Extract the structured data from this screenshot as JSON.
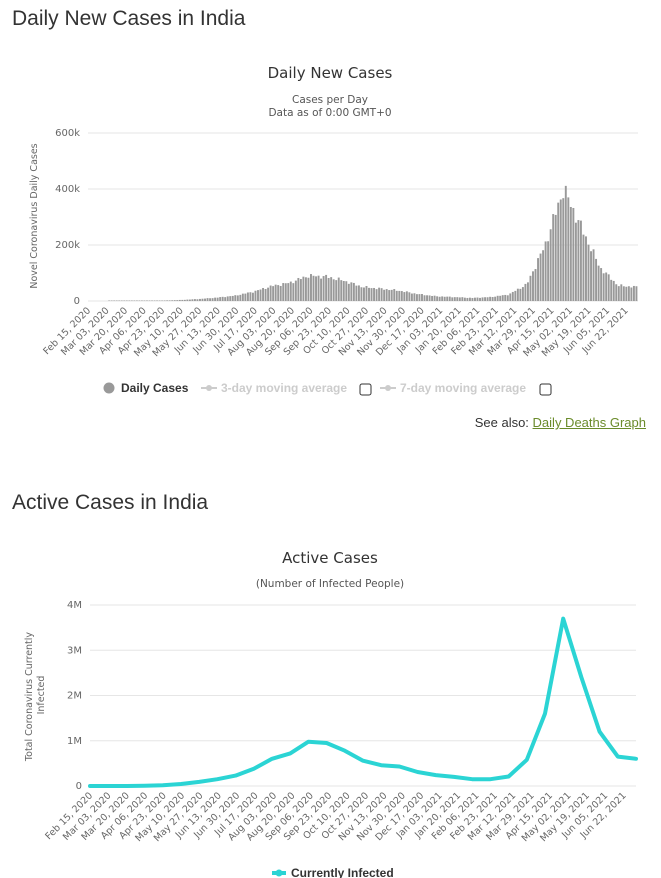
{
  "page": {
    "title_daily": "Daily New Cases in India",
    "title_active": "Active Cases in India",
    "see_also_prefix": "See also: ",
    "see_also_link": "Daily Deaths Graph"
  },
  "chart_data": [
    {
      "type": "bar",
      "title": "Daily New Cases",
      "subtitle1": "Cases per Day",
      "subtitle2": "Data as of 0:00 GMT+0",
      "ylabel": "Novel Coronavirus Daily Cases",
      "xlabel": "",
      "ylim": [
        0,
        600000
      ],
      "yticks": [
        0,
        200000,
        400000,
        600000
      ],
      "ytick_labels": [
        "0",
        "200k",
        "400k",
        "600k"
      ],
      "x_tick_labels": [
        "Feb 15, 2020",
        "Mar 03, 2020",
        "Mar 20, 2020",
        "Apr 06, 2020",
        "Apr 23, 2020",
        "May 10, 2020",
        "May 27, 2020",
        "Jun 13, 2020",
        "Jun 30, 2020",
        "Jul 17, 2020",
        "Aug 03, 2020",
        "Aug 20, 2020",
        "Sep 06, 2020",
        "Sep 23, 2020",
        "Oct 10, 2020",
        "Oct 27, 2020",
        "Nov 13, 2020",
        "Nov 30, 2020",
        "Dec 17, 2020",
        "Jan 03, 2021",
        "Jan 20, 2021",
        "Feb 06, 2021",
        "Feb 23, 2021",
        "Mar 12, 2021",
        "Mar 29, 2021",
        "Apr 15, 2021",
        "May 02, 2021",
        "May 19, 2021",
        "Jun 05, 2021",
        "Jun 22, 2021"
      ],
      "series": [
        {
          "name": "Daily Cases",
          "color": "#999999",
          "x": [
            "Feb 15, 2020",
            "Mar 03, 2020",
            "Mar 20, 2020",
            "Apr 06, 2020",
            "Apr 23, 2020",
            "May 10, 2020",
            "May 27, 2020",
            "Jun 13, 2020",
            "Jun 30, 2020",
            "Jul 17, 2020",
            "Aug 03, 2020",
            "Aug 20, 2020",
            "Sep 06, 2020",
            "Sep 23, 2020",
            "Oct 10, 2020",
            "Oct 27, 2020",
            "Nov 13, 2020",
            "Nov 30, 2020",
            "Dec 17, 2020",
            "Jan 03, 2021",
            "Jan 20, 2021",
            "Feb 06, 2021",
            "Feb 23, 2021",
            "Mar 12, 2021",
            "Mar 29, 2021",
            "Apr 15, 2021",
            "May 02, 2021",
            "May 19, 2021",
            "Jun 05, 2021",
            "Jun 22, 2021",
            "Jun 27, 2021"
          ],
          "values": [
            0,
            0,
            50,
            600,
            1500,
            3500,
            7000,
            12000,
            19000,
            33000,
            53000,
            65000,
            90000,
            87000,
            72000,
            50000,
            44000,
            37000,
            25000,
            17000,
            14000,
            11000,
            14000,
            23000,
            60000,
            200000,
            400000,
            260000,
            120000,
            55000,
            50000
          ]
        }
      ],
      "legend": [
        {
          "label": "Daily Cases",
          "active": true
        },
        {
          "label": "3-day moving average",
          "active": false
        },
        {
          "label": "7-day moving average",
          "active": false
        }
      ]
    },
    {
      "type": "line",
      "title": "Active Cases",
      "subtitle1": "(Number of Infected People)",
      "ylabel": "Total Coronavirus Currently Infected",
      "xlabel": "",
      "ylim": [
        0,
        4000000
      ],
      "yticks": [
        0,
        1000000,
        2000000,
        3000000,
        4000000
      ],
      "ytick_labels": [
        "0",
        "1M",
        "2M",
        "3M",
        "4M"
      ],
      "x_tick_labels": [
        "Feb 15, 2020",
        "Mar 03, 2020",
        "Mar 20, 2020",
        "Apr 06, 2020",
        "Apr 23, 2020",
        "May 10, 2020",
        "May 27, 2020",
        "Jun 13, 2020",
        "Jun 30, 2020",
        "Jul 17, 2020",
        "Aug 03, 2020",
        "Aug 20, 2020",
        "Sep 06, 2020",
        "Sep 23, 2020",
        "Oct 10, 2020",
        "Oct 27, 2020",
        "Nov 13, 2020",
        "Nov 30, 2020",
        "Dec 17, 2020",
        "Jan 03, 2021",
        "Jan 20, 2021",
        "Feb 06, 2021",
        "Feb 23, 2021",
        "Mar 12, 2021",
        "Mar 29, 2021",
        "Apr 15, 2021",
        "May 02, 2021",
        "May 19, 2021",
        "Jun 05, 2021",
        "Jun 22, 2021"
      ],
      "series": [
        {
          "name": "Currently Infected",
          "color": "#2bd4d4",
          "x": [
            "Feb 15, 2020",
            "Mar 03, 2020",
            "Mar 20, 2020",
            "Apr 06, 2020",
            "Apr 23, 2020",
            "May 10, 2020",
            "May 27, 2020",
            "Jun 13, 2020",
            "Jun 30, 2020",
            "Jul 17, 2020",
            "Aug 03, 2020",
            "Aug 20, 2020",
            "Sep 06, 2020",
            "Sep 23, 2020",
            "Oct 10, 2020",
            "Oct 27, 2020",
            "Nov 13, 2020",
            "Nov 30, 2020",
            "Dec 17, 2020",
            "Jan 03, 2021",
            "Jan 20, 2021",
            "Feb 06, 2021",
            "Feb 23, 2021",
            "Mar 12, 2021",
            "Mar 29, 2021",
            "Apr 15, 2021",
            "May 02, 2021",
            "May 19, 2021",
            "Jun 05, 2021",
            "Jun 22, 2021",
            "Jun 27, 2021"
          ],
          "values": [
            0,
            0,
            1000,
            5000,
            18000,
            45000,
            90000,
            150000,
            230000,
            380000,
            600000,
            720000,
            980000,
            950000,
            780000,
            560000,
            460000,
            430000,
            310000,
            240000,
            200000,
            150000,
            150000,
            210000,
            580000,
            1600000,
            3700000,
            2400000,
            1200000,
            650000,
            600000
          ]
        }
      ],
      "legend": [
        {
          "label": "Currently Infected",
          "active": true
        }
      ]
    }
  ]
}
